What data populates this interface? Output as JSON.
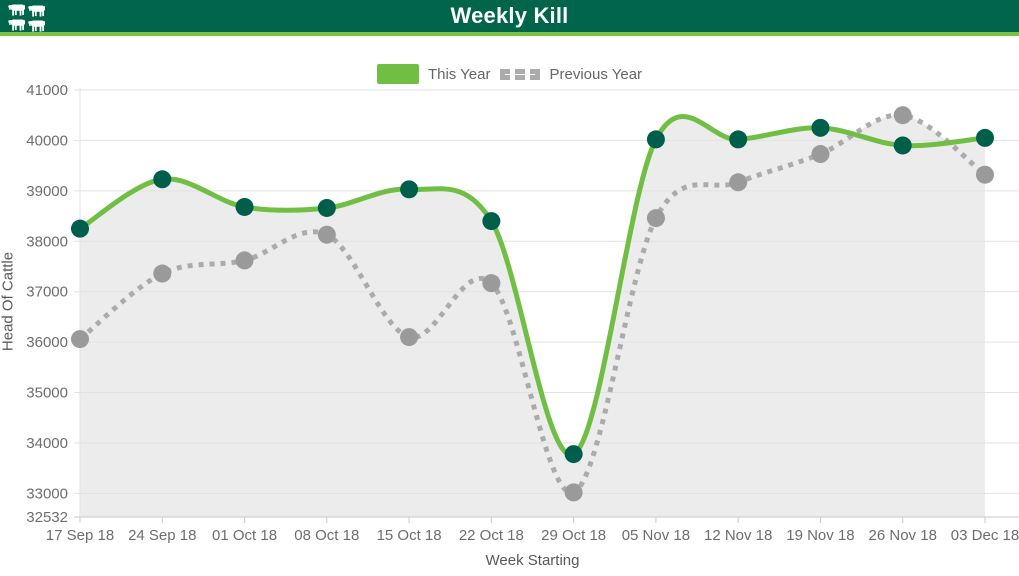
{
  "header": {
    "title": "Weekly Kill",
    "icon": "cattle-herd-icon"
  },
  "chart_data": {
    "type": "line",
    "title": "Weekly Kill",
    "xlabel": "Week Starting",
    "ylabel": "Head Of Cattle",
    "categories": [
      "17 Sep 18",
      "24 Sep 18",
      "01 Oct 18",
      "08 Oct 18",
      "15 Oct 18",
      "22 Oct 18",
      "29 Oct 18",
      "05 Nov 18",
      "12 Nov 18",
      "19 Nov 18",
      "26 Nov 18",
      "03 Dec 18"
    ],
    "series": [
      {
        "name": "This Year",
        "style": "solid",
        "color": "#70bf44",
        "point_color": "#005f4a",
        "values": [
          38250,
          39230,
          38680,
          38660,
          39030,
          38400,
          33780,
          40020,
          40020,
          40250,
          39900,
          40050
        ]
      },
      {
        "name": "Previous Year",
        "style": "dotted",
        "color": "#ababab",
        "point_color": "#9a9a9a",
        "values": [
          36060,
          37360,
          37620,
          38130,
          36100,
          37170,
          33020,
          38460,
          39170,
          39730,
          40500,
          39320
        ]
      }
    ],
    "y_ticks": [
      41000,
      40000,
      39000,
      38000,
      37000,
      36000,
      35000,
      34000,
      33000,
      32532
    ],
    "ylim": [
      32532,
      41000
    ],
    "grid": true,
    "legend_position": "top",
    "area_fill": "#ececec"
  },
  "theme": {
    "header_bg": "#00654a",
    "header_accent": "#7dc143",
    "gridline": "#e2e2e2",
    "axis_line": "#c9c9c9",
    "tick_text": "#6e6e6e"
  }
}
